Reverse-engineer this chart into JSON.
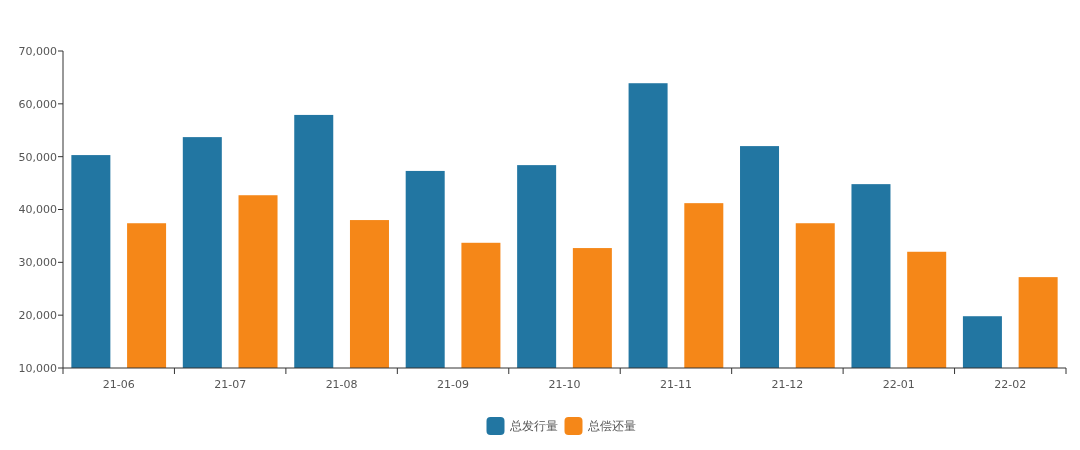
{
  "chart_data": {
    "type": "bar",
    "categories": [
      "21-06",
      "21-07",
      "21-08",
      "21-09",
      "21-10",
      "21-11",
      "21-12",
      "22-01",
      "22-02"
    ],
    "series": [
      {
        "name": "总发行量",
        "color": "#2276a2",
        "values": [
          50300,
          53700,
          57900,
          47300,
          48400,
          63900,
          52000,
          44800,
          19800
        ]
      },
      {
        "name": "总偿还量",
        "color": "#f58718",
        "values": [
          37400,
          42700,
          38000,
          33700,
          32700,
          41200,
          37400,
          32000,
          27200
        ]
      }
    ],
    "ylim": [
      10000,
      70000
    ],
    "yticks": [
      {
        "value": 10000,
        "label": "10,000"
      },
      {
        "value": 20000,
        "label": "20,000"
      },
      {
        "value": 30000,
        "label": "30,000"
      },
      {
        "value": 40000,
        "label": "40,000"
      },
      {
        "value": 50000,
        "label": "50,000"
      },
      {
        "value": 60000,
        "label": "60,000"
      },
      {
        "value": 70000,
        "label": "70,000"
      }
    ],
    "grid": false,
    "legend": "bottom"
  }
}
